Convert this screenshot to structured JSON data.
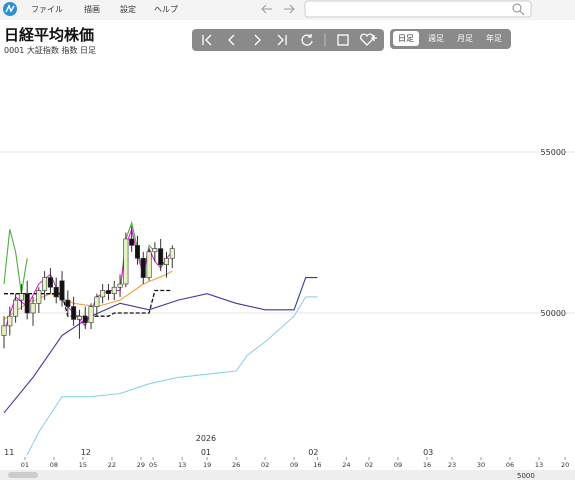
{
  "menu": [
    "ファイル",
    "描画",
    "設定",
    "ヘルプ"
  ],
  "header": {
    "title": "日経平均株価",
    "subtitle": "0001 大証指数 指数 日足"
  },
  "periods": [
    "日足",
    "週足",
    "月足",
    "年足"
  ],
  "scale_label": "5000",
  "chart_data": {
    "type": "candlestick",
    "x": [
      0,
      1,
      2,
      3,
      4,
      5,
      6,
      7,
      8,
      9,
      10,
      11,
      12,
      13,
      14,
      15,
      16,
      17,
      18,
      19,
      20,
      21,
      22,
      23,
      24,
      25,
      26,
      27,
      28,
      29
    ],
    "open": [
      49300,
      49600,
      49900,
      50400,
      50600,
      50000,
      50300,
      50700,
      51100,
      50800,
      51000,
      50400,
      50200,
      49800,
      49900,
      49700,
      50200,
      50500,
      50700,
      50600,
      50800,
      50900,
      52300,
      52100,
      51700,
      51100,
      51900,
      52000,
      51500,
      51700
    ],
    "high": [
      49900,
      50200,
      50600,
      50900,
      51000,
      50500,
      50800,
      51300,
      51400,
      51100,
      51300,
      50700,
      50500,
      50100,
      50200,
      50300,
      50600,
      50900,
      50900,
      51000,
      51200,
      52500,
      52700,
      52400,
      51900,
      52000,
      52200,
      52300,
      51900,
      52100
    ],
    "low": [
      48900,
      49300,
      49700,
      50100,
      49800,
      49600,
      50000,
      50400,
      50600,
      50300,
      50200,
      49900,
      49600,
      49200,
      49500,
      49500,
      49900,
      50300,
      50400,
      50400,
      50500,
      50800,
      51900,
      51500,
      50900,
      51000,
      51600,
      51300,
      51100,
      51400
    ],
    "close": [
      49600,
      49900,
      50400,
      50600,
      50000,
      50300,
      50700,
      51100,
      50800,
      50500,
      50400,
      50200,
      49800,
      49900,
      49700,
      50200,
      50500,
      50700,
      50600,
      50800,
      50900,
      52300,
      52100,
      51700,
      51100,
      51900,
      52000,
      51500,
      51700,
      52000
    ],
    "up_color": "#e6f4c4",
    "down_color": "#111111",
    "series": [
      {
        "color": "#3a3aa0",
        "x": [
          0,
          5,
          10,
          15,
          20,
          25,
          30,
          35,
          40,
          45,
          47,
          50,
          52,
          54
        ],
        "values": [
          46900,
          48000,
          49300,
          49900,
          50300,
          50100,
          50400,
          50600,
          50300,
          50100,
          50100,
          50100,
          51100,
          51100
        ]
      },
      {
        "color": "#8fd0ea",
        "x": [
          4,
          6,
          10,
          15,
          20,
          25,
          30,
          35,
          40,
          42,
          45,
          50,
          52,
          54
        ],
        "values": [
          45600,
          46300,
          47400,
          47400,
          47500,
          47800,
          48000,
          48100,
          48200,
          48700,
          49100,
          49900,
          50500,
          50500
        ]
      },
      {
        "color": "#4caf3a",
        "x": [
          0,
          1,
          2,
          3,
          4,
          5,
          20,
          21,
          22,
          23,
          24,
          25,
          26
        ],
        "values": [
          50900,
          52600,
          51900,
          50600,
          51700,
          null,
          50700,
          52300,
          52800,
          52000,
          51200,
          52100,
          51900
        ]
      },
      {
        "color": "#e020e0",
        "x": [
          0,
          2,
          4,
          6,
          8,
          10,
          12,
          14,
          16,
          18,
          20,
          21,
          22,
          23,
          24,
          25,
          26,
          27,
          28,
          29
        ],
        "values": [
          49400,
          50500,
          50200,
          50900,
          51200,
          50400,
          50000,
          49600,
          50500,
          50700,
          50700,
          52100,
          52600,
          51800,
          51200,
          52000,
          51600,
          51400,
          51700,
          51900
        ]
      },
      {
        "color": "#f0a040",
        "x": [
          0,
          4,
          8,
          12,
          16,
          20,
          24,
          28,
          29
        ],
        "values": [
          49800,
          50300,
          50600,
          50300,
          50200,
          50400,
          50900,
          51200,
          51300
        ]
      },
      {
        "color": "#111111",
        "dash": true,
        "x": [
          0,
          10,
          11,
          18,
          19,
          25,
          26,
          29
        ],
        "values": [
          50600,
          50600,
          49900,
          49900,
          50000,
          50000,
          50700,
          50700
        ]
      }
    ],
    "ylim": [
      45590,
      58851
    ],
    "yticks": [
      50000,
      55000
    ],
    "xlim": [
      0,
      98.4
    ],
    "xticks": [
      {
        "value": 3.6,
        "label": "01"
      },
      {
        "value": 8.6,
        "label": "08"
      },
      {
        "value": 13.6,
        "label": "15"
      },
      {
        "value": 18.6,
        "label": "22"
      },
      {
        "value": 23.6,
        "label": "29"
      },
      {
        "value": 25.7,
        "label": "05"
      },
      {
        "value": 30.7,
        "label": "13"
      },
      {
        "value": 35,
        "label": "19"
      },
      {
        "value": 40,
        "label": "26"
      },
      {
        "value": 45,
        "label": "02"
      },
      {
        "value": 50,
        "label": "09"
      },
      {
        "value": 54,
        "label": "16"
      },
      {
        "value": 59,
        "label": "24"
      },
      {
        "value": 62.9,
        "label": "02"
      },
      {
        "value": 67.9,
        "label": "09"
      },
      {
        "value": 72.9,
        "label": "16"
      },
      {
        "value": 77.2,
        "label": "23"
      },
      {
        "value": 82.2,
        "label": "30"
      },
      {
        "value": 87.2,
        "label": "06"
      },
      {
        "value": 92.2,
        "label": "13"
      },
      {
        "value": 96.7,
        "label": "20"
      }
    ],
    "month_ticks": [
      {
        "value": 0.9,
        "label": "11"
      },
      {
        "value": 14.1,
        "label": "12"
      },
      {
        "value": 34.8,
        "label": "01"
      },
      {
        "value": 53.3,
        "label": "02"
      },
      {
        "value": 73.1,
        "label": "03"
      }
    ],
    "year_tick": {
      "value": 34.8,
      "label": "2026"
    }
  }
}
